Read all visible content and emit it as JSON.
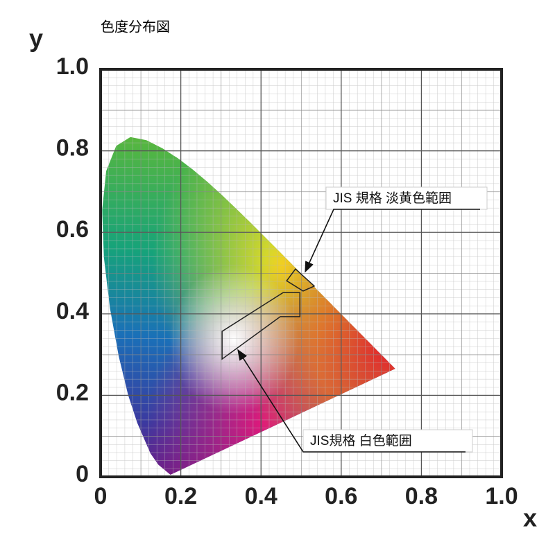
{
  "chart_data": {
    "type": "chromaticity",
    "title": "色度分布図",
    "x_label": "x",
    "y_label": "y",
    "xlim": [
      0,
      1
    ],
    "ylim": [
      0,
      1
    ],
    "xticks": [
      0,
      0.2,
      0.4,
      0.6,
      0.8,
      {
        "value": 1,
        "label": "1.0"
      }
    ],
    "yticks": [
      0,
      0.2,
      0.4,
      0.6,
      0.8,
      {
        "value": 1,
        "label": "1.0"
      }
    ],
    "grid": true,
    "locus": {
      "x": [
        0.1741,
        0.144,
        0.1241,
        0.0913,
        0.0687,
        0.0454,
        0.0235,
        0.0082,
        0.0039,
        0.0139,
        0.0389,
        0.0743,
        0.1142,
        0.1547,
        0.1929,
        0.2296,
        0.2658,
        0.3016,
        0.3373,
        0.3731,
        0.4087,
        0.4441,
        0.4788,
        0.5125,
        0.5448,
        0.5752,
        0.6029,
        0.627,
        0.6482,
        0.6658,
        0.6801,
        0.6915,
        0.7006,
        0.7079,
        0.7347
      ],
      "y": [
        0.005,
        0.0297,
        0.0578,
        0.1327,
        0.2007,
        0.295,
        0.4127,
        0.5384,
        0.6548,
        0.7502,
        0.812,
        0.8338,
        0.8262,
        0.8059,
        0.7816,
        0.7543,
        0.7243,
        0.6923,
        0.6589,
        0.6245,
        0.5896,
        0.5547,
        0.5202,
        0.4866,
        0.4544,
        0.4242,
        0.3965,
        0.3725,
        0.3514,
        0.334,
        0.3197,
        0.3083,
        0.2993,
        0.292,
        0.2653
      ]
    },
    "regions": [
      {
        "name": "JIS 規格 淡黄色範囲",
        "x": [
          0.464,
          0.486,
          0.533,
          0.505
        ],
        "y": [
          0.481,
          0.51,
          0.468,
          0.456
        ]
      },
      {
        "name": "JIS規格 白色範囲",
        "x": [
          0.303,
          0.303,
          0.455,
          0.497,
          0.497,
          0.448
        ],
        "y": [
          0.289,
          0.357,
          0.452,
          0.452,
          0.393,
          0.393
        ]
      }
    ]
  }
}
